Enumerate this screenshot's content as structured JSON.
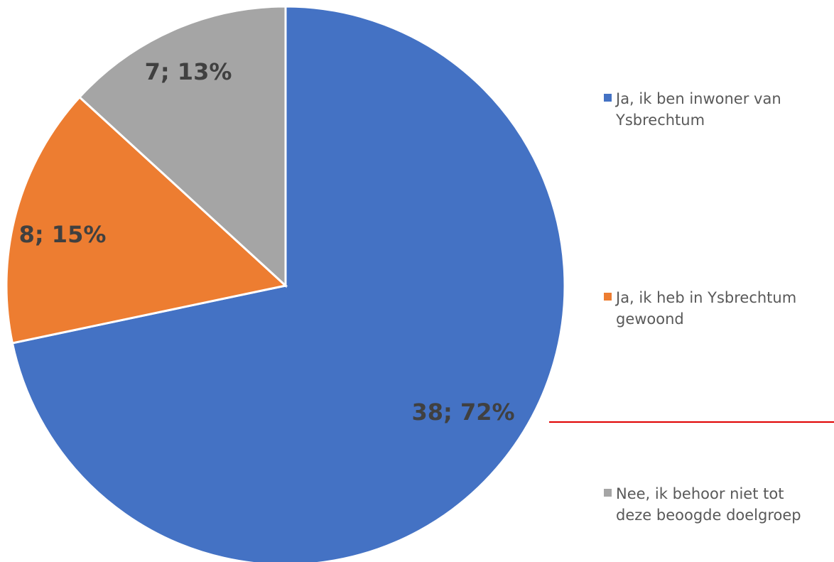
{
  "chart_data": {
    "type": "pie",
    "title": "",
    "slices": [
      {
        "label": "Ja, ik ben inwoner van Ysbrechtum",
        "value": 38,
        "percent": 72,
        "data_label": "38; 72%",
        "color": "#4472C4"
      },
      {
        "label": "Ja, ik heb in Ysbrechtum gewoond",
        "value": 8,
        "percent": 15,
        "data_label": "8; 15%",
        "color": "#ED7D31"
      },
      {
        "label": "Nee, ik behoor niet tot deze beoogde doelgroep",
        "value": 7,
        "percent": 13,
        "data_label": "7; 13%",
        "color": "#A5A5A5"
      }
    ],
    "legend": {
      "placement": "right",
      "entries": [
        {
          "label_line1": "Ja, ik ben inwoner van",
          "label_line2": "Ysbrechtum",
          "color": "#4472C4"
        },
        {
          "label_line1": "Ja, ik heb in Ysbrechtum",
          "label_line2": "gewoond",
          "color": "#ED7D31"
        },
        {
          "label_line1": "Nee, ik behoor niet tot",
          "label_line2": "deze beoogde doelgroep",
          "color": "#A5A5A5"
        }
      ]
    },
    "start_angle": "12 o'clock, clockwise"
  },
  "annotation": {
    "divider_color": "#E00000"
  }
}
